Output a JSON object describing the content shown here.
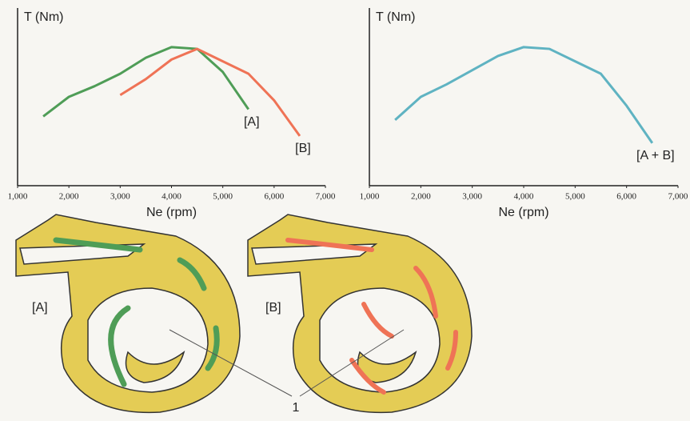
{
  "chart_data": [
    {
      "type": "line",
      "y_label": "T (Nm)",
      "x_label": "Ne (rpm)",
      "x": [
        1500,
        2000,
        2500,
        3000,
        3500,
        4000,
        4500,
        5000,
        5500,
        6000,
        6500
      ],
      "series": [
        {
          "name": "[A]",
          "color": "#4f9d57",
          "values": [
            39,
            50,
            56,
            63,
            72,
            78,
            77,
            64,
            43,
            null,
            null
          ]
        },
        {
          "name": "[B]",
          "color": "#ef7356",
          "values": [
            null,
            null,
            null,
            51,
            60,
            71,
            77,
            70,
            63,
            48,
            28
          ]
        }
      ],
      "xlim": [
        1000,
        7000
      ],
      "ylim": [
        0,
        100
      ],
      "xticks": [
        {
          "value": 1000,
          "label": "1,000"
        },
        {
          "value": 2000,
          "label": "2,000"
        },
        {
          "value": 3000,
          "label": "3,000"
        },
        {
          "value": 4000,
          "label": "4,000"
        },
        {
          "value": 5000,
          "label": "5,000"
        },
        {
          "value": 6000,
          "label": "6,000"
        },
        {
          "value": 7000,
          "label": "7,000"
        }
      ]
    },
    {
      "type": "line",
      "y_label": "T (Nm)",
      "x_label": "Ne (rpm)",
      "x": [
        1500,
        2000,
        2500,
        3000,
        3500,
        4000,
        4500,
        5000,
        5500,
        6000,
        6500
      ],
      "series": [
        {
          "name": "[A + B]",
          "color": "#5fb3c2",
          "values": [
            37,
            50,
            57,
            65,
            73,
            78,
            77,
            70,
            63,
            45,
            24
          ]
        }
      ],
      "xlim": [
        1000,
        7000
      ],
      "ylim": [
        0,
        100
      ],
      "xticks": [
        {
          "value": 1000,
          "label": "1,000"
        },
        {
          "value": 2000,
          "label": "2,000"
        },
        {
          "value": 3000,
          "label": "3,000"
        },
        {
          "value": 4000,
          "label": "4,000"
        },
        {
          "value": 5000,
          "label": "5,000"
        },
        {
          "value": 6000,
          "label": "6,000"
        },
        {
          "value": 7000,
          "label": "7,000"
        }
      ]
    }
  ],
  "diagram": {
    "left_label": "[A]",
    "right_label": "[B]",
    "callout": "1"
  }
}
